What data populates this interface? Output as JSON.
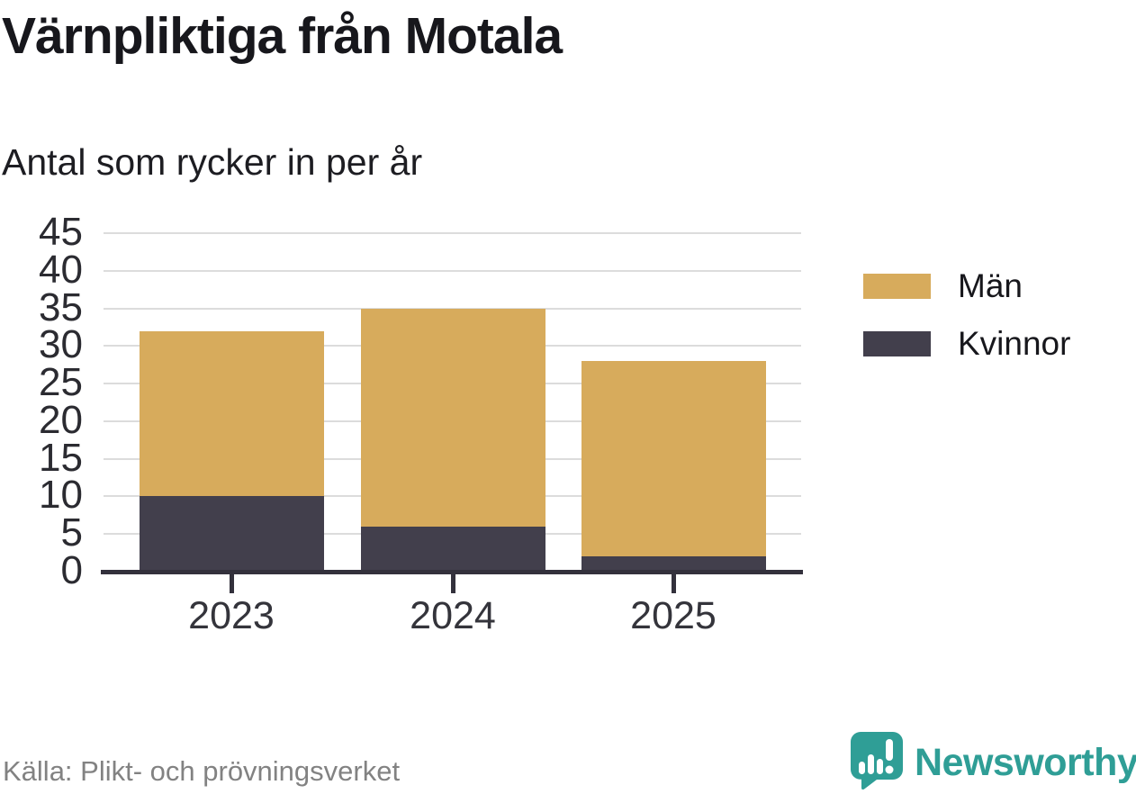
{
  "title": "Värnpliktiga från Motala",
  "subtitle": "Antal som rycker in per år",
  "source": "Källa: Plikt- och prövningsverket",
  "brand": {
    "name": "Newsworthy",
    "color": "#2f9e96"
  },
  "colors": {
    "men": "#d7ab5c",
    "women": "#423f4c",
    "grid": "#dcdcdc",
    "axis": "#33313c",
    "title_text": "#17171c",
    "muted_text": "#828282"
  },
  "chart_data": {
    "type": "bar",
    "stacked": true,
    "title": "Värnpliktiga från Motala",
    "subtitle": "Antal som rycker in per år",
    "categories": [
      "2023",
      "2024",
      "2025"
    ],
    "series": [
      {
        "name": "Män",
        "color": "#d7ab5c",
        "values": [
          22,
          29,
          26
        ]
      },
      {
        "name": "Kvinnor",
        "color": "#423f4c",
        "values": [
          10,
          6,
          2
        ]
      }
    ],
    "stack_order_bottom_to_top": [
      "Kvinnor",
      "Män"
    ],
    "totals": [
      32,
      35,
      28
    ],
    "ylim": [
      0,
      45
    ],
    "yticks": [
      0,
      5,
      10,
      15,
      20,
      25,
      30,
      35,
      40,
      45
    ],
    "xlabel": "",
    "ylabel": "",
    "grid": true,
    "legend": {
      "position": "right",
      "items": [
        "Män",
        "Kvinnor"
      ]
    }
  }
}
